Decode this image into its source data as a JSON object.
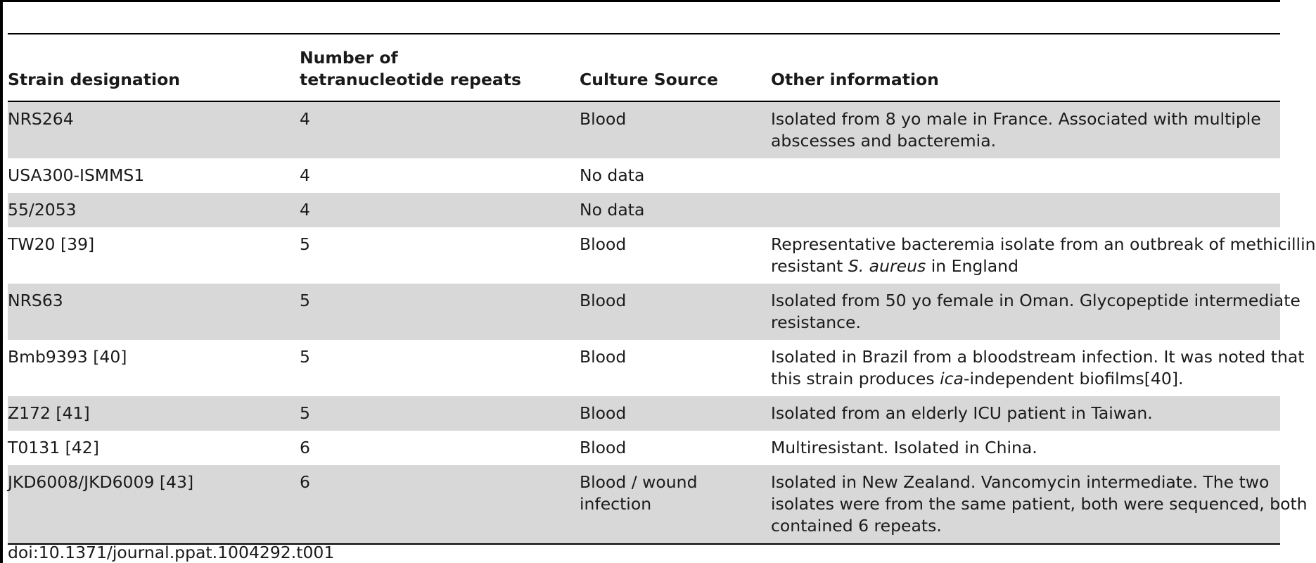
{
  "table": {
    "headers": [
      "Strain designation",
      "Number of tetranucleotide repeats",
      "Culture Source",
      "Other information"
    ],
    "rows": [
      {
        "strain": "NRS264",
        "repeats": "4",
        "source": "Blood",
        "info": [
          "Isolated from 8 yo male in France. Associated with multiple",
          "abscesses and bacteremia."
        ]
      },
      {
        "strain": "USA300-ISMMS1",
        "repeats": "4",
        "source": "No data",
        "info": []
      },
      {
        "strain": "55/2053",
        "repeats": "4",
        "source": "No data",
        "info": []
      },
      {
        "strain": "TW20 [39]",
        "repeats": "5",
        "source": "Blood",
        "info_rich": [
          [
            {
              "t": "Representative bacteremia isolate from an outbreak of methicillin"
            }
          ],
          [
            {
              "t": "resistant "
            },
            {
              "t": "S. aureus",
              "i": true
            },
            {
              "t": " in England"
            }
          ]
        ]
      },
      {
        "strain": "NRS63",
        "repeats": "5",
        "source": "Blood",
        "info": [
          "Isolated from 50 yo female in Oman. Glycopeptide intermediate",
          "resistance."
        ]
      },
      {
        "strain": "Bmb9393 [40]",
        "repeats": "5",
        "source": "Blood",
        "info_rich": [
          [
            {
              "t": "Isolated in Brazil from a bloodstream infection. It was noted that"
            }
          ],
          [
            {
              "t": "this strain produces "
            },
            {
              "t": "ica",
              "i": true
            },
            {
              "t": "-independent biofilms[40]."
            }
          ]
        ]
      },
      {
        "strain": "Z172 [41]",
        "repeats": "5",
        "source": "Blood",
        "info": [
          "Isolated from an elderly ICU patient in Taiwan."
        ]
      },
      {
        "strain": "T0131 [42]",
        "repeats": "6",
        "source": "Blood",
        "info": [
          "Multiresistant. Isolated in China."
        ]
      },
      {
        "strain": "JKD6008/JKD6009 [43]",
        "repeats": "6",
        "source_lines": [
          "Blood / wound",
          "infection"
        ],
        "info": [
          "Isolated in New Zealand. Vancomycin intermediate. The two",
          "isolates were from the same patient, both were sequenced, both",
          "contained 6 repeats."
        ]
      }
    ]
  },
  "doi": "doi:10.1371/journal.ppat.1004292.t001"
}
